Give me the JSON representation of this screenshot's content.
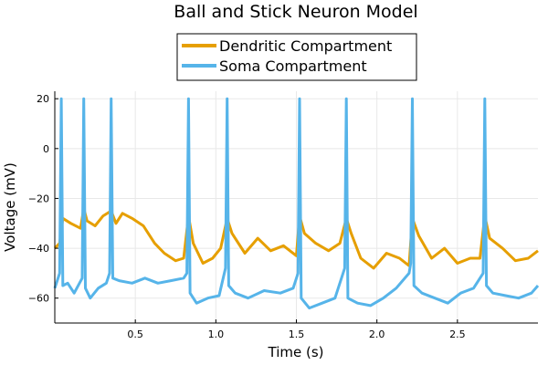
{
  "chart_data": {
    "type": "line",
    "title": "Ball and Stick Neuron Model",
    "xlabel": "Time (s)",
    "ylabel": "Voltage (mV)",
    "xlim": [
      0.0,
      3.0
    ],
    "ylim": [
      -70,
      23
    ],
    "grid": true,
    "legend_position": "top-center",
    "x_ticks": [
      0.5,
      1.0,
      1.5,
      2.0,
      2.5
    ],
    "x_tick_labels": [
      "0.5",
      "1.0",
      "1.5",
      "2.0",
      "2.5"
    ],
    "y_ticks": [
      20,
      0,
      -20,
      -40,
      -60
    ],
    "y_tick_labels": [
      "20",
      "0",
      "−20",
      "−40",
      "−60"
    ],
    "spike_times": [
      0.04,
      0.18,
      0.35,
      0.83,
      1.07,
      1.52,
      1.81,
      2.22,
      2.67
    ],
    "series": [
      {
        "name": "Dendritic Compartment",
        "color": "#e69f00",
        "x": [
          0.0,
          0.03,
          0.05,
          0.1,
          0.16,
          0.18,
          0.2,
          0.25,
          0.3,
          0.35,
          0.38,
          0.42,
          0.48,
          0.55,
          0.62,
          0.68,
          0.75,
          0.8,
          0.83,
          0.86,
          0.92,
          0.98,
          1.03,
          1.07,
          1.1,
          1.18,
          1.26,
          1.34,
          1.42,
          1.5,
          1.52,
          1.55,
          1.62,
          1.7,
          1.77,
          1.81,
          1.84,
          1.9,
          1.98,
          2.06,
          2.14,
          2.2,
          2.22,
          2.26,
          2.34,
          2.42,
          2.5,
          2.58,
          2.64,
          2.67,
          2.7,
          2.78,
          2.86,
          2.94,
          3.0
        ],
        "values": [
          -40,
          -38,
          -28,
          -30,
          -32,
          -24,
          -29,
          -31,
          -27,
          -25,
          -30,
          -26,
          -28,
          -31,
          -38,
          -42,
          -45,
          -44,
          -27,
          -38,
          -46,
          -44,
          -40,
          -28,
          -34,
          -42,
          -36,
          -41,
          -39,
          -43,
          -27,
          -34,
          -38,
          -41,
          -38,
          -28,
          -34,
          -44,
          -48,
          -42,
          -44,
          -47,
          -28,
          -35,
          -44,
          -40,
          -46,
          -44,
          -44,
          -27,
          -36,
          -40,
          -45,
          -44,
          -41
        ]
      },
      {
        "name": "Soma Compartment",
        "color": "#56b4e9",
        "x": [
          0.0,
          0.03,
          0.04,
          0.05,
          0.08,
          0.12,
          0.17,
          0.18,
          0.19,
          0.22,
          0.27,
          0.32,
          0.34,
          0.35,
          0.36,
          0.4,
          0.48,
          0.56,
          0.64,
          0.72,
          0.8,
          0.82,
          0.83,
          0.84,
          0.88,
          0.95,
          1.02,
          1.06,
          1.07,
          1.08,
          1.12,
          1.2,
          1.3,
          1.4,
          1.48,
          1.51,
          1.52,
          1.53,
          1.58,
          1.66,
          1.74,
          1.8,
          1.81,
          1.82,
          1.88,
          1.96,
          2.04,
          2.12,
          2.2,
          2.21,
          2.22,
          2.23,
          2.28,
          2.36,
          2.44,
          2.52,
          2.6,
          2.66,
          2.67,
          2.68,
          2.72,
          2.8,
          2.88,
          2.96,
          3.0
        ],
        "values": [
          -56,
          -50,
          20,
          -55,
          -54,
          -58,
          -52,
          20,
          -56,
          -60,
          -56,
          -54,
          -50,
          20,
          -52,
          -53,
          -54,
          -52,
          -54,
          -53,
          -52,
          -50,
          20,
          -58,
          -62,
          -60,
          -59,
          -48,
          20,
          -55,
          -58,
          -60,
          -57,
          -58,
          -56,
          -50,
          20,
          -60,
          -64,
          -62,
          -60,
          -48,
          20,
          -60,
          -62,
          -63,
          -60,
          -56,
          -50,
          -46,
          20,
          -55,
          -58,
          -60,
          -62,
          -58,
          -56,
          -50,
          20,
          -55,
          -58,
          -59,
          -60,
          -58,
          -55
        ]
      }
    ]
  }
}
